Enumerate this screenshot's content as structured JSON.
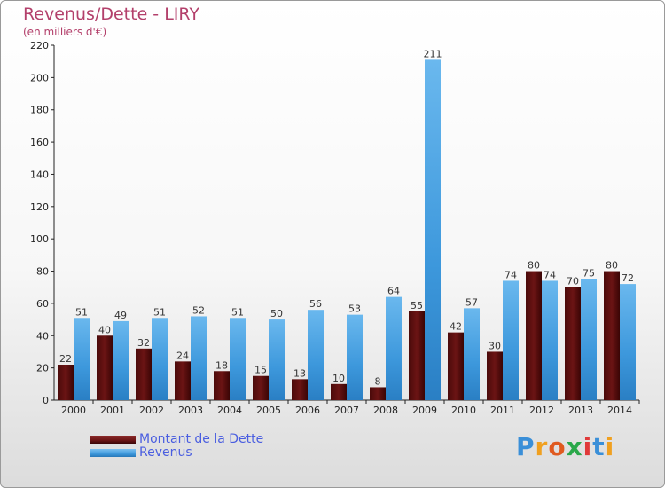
{
  "title": "Revenus/Dette - LIRY",
  "subtitle": "(en milliers d'€)",
  "brand": {
    "letters": [
      "P",
      "r",
      "o",
      "x",
      "i",
      "t",
      "i"
    ],
    "colors": [
      "#3a8fd8",
      "#f0a020",
      "#e05a20",
      "#2aa84a",
      "#e03a3a",
      "#3a8fd8",
      "#f0a020"
    ]
  },
  "colors": {
    "dette": "#6b1414",
    "revenus": "#3d98dc"
  },
  "chart_data": {
    "type": "bar",
    "categories": [
      "2000",
      "2001",
      "2002",
      "2003",
      "2004",
      "2005",
      "2006",
      "2007",
      "2008",
      "2009",
      "2010",
      "2011",
      "2012",
      "2013",
      "2014"
    ],
    "series": [
      {
        "name": "Montant de la Dette",
        "values": [
          22,
          40,
          32,
          24,
          18,
          15,
          13,
          10,
          8,
          55,
          42,
          30,
          80,
          70,
          80
        ]
      },
      {
        "name": "Revenus",
        "values": [
          51,
          49,
          51,
          52,
          51,
          50,
          56,
          53,
          64,
          211,
          57,
          74,
          74,
          75,
          72
        ]
      }
    ],
    "yticks": [
      "0",
      "20",
      "40",
      "60",
      "80",
      "100",
      "120",
      "140",
      "160",
      "180",
      "200",
      "220"
    ],
    "ylim": [
      0,
      220
    ],
    "grid": false,
    "legend": "bottom-left"
  }
}
